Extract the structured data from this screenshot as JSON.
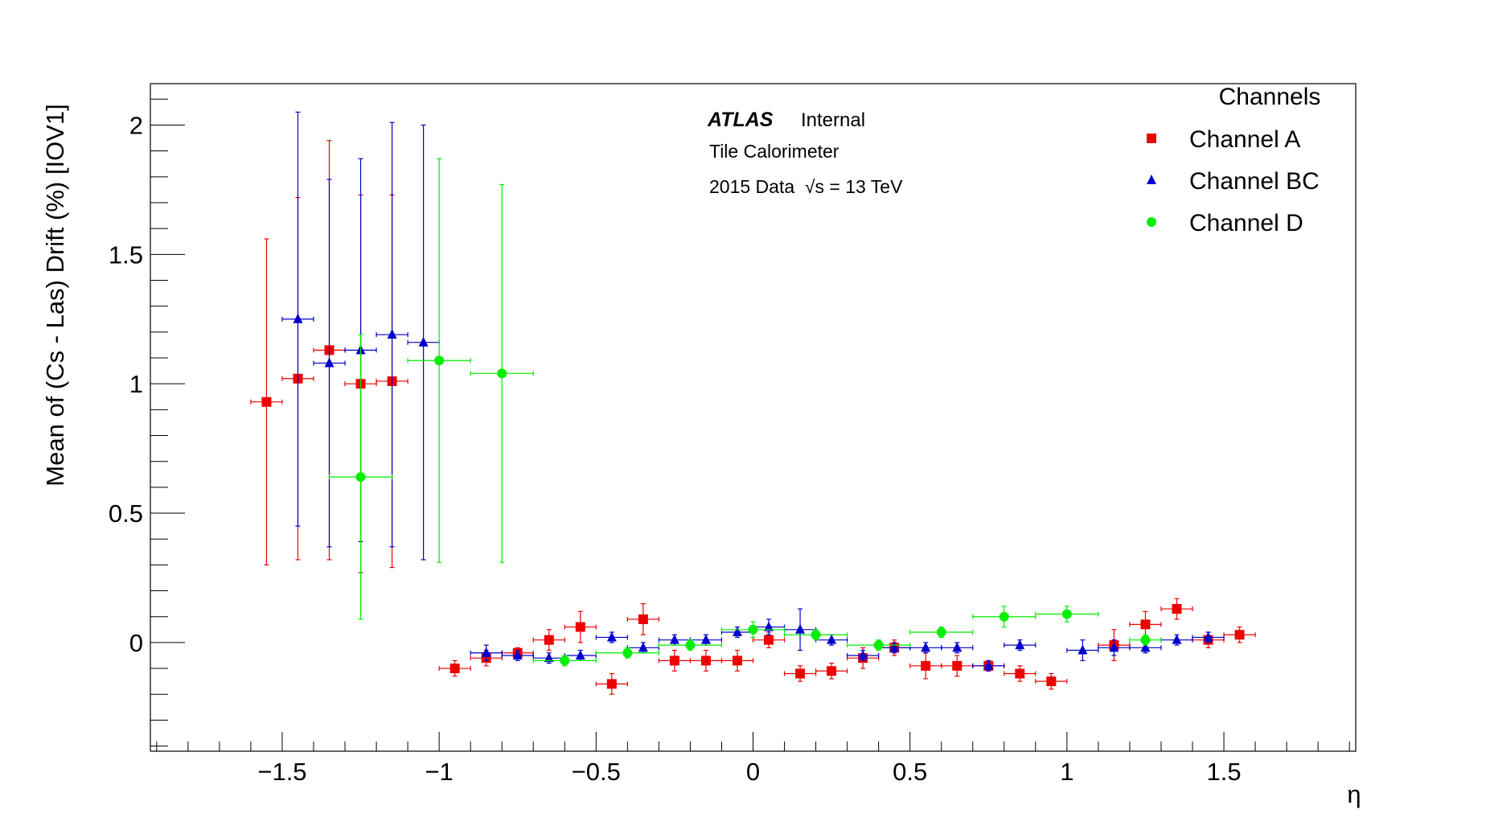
{
  "chart_data": {
    "type": "scatter",
    "title": "",
    "xlabel": "η",
    "ylabel": "Mean of (Cs - Las) Drift (%) [IOV1]",
    "xlim": [
      -1.92,
      1.92
    ],
    "ylim": [
      -0.42,
      2.16
    ],
    "xticks": [
      {
        "value": -1.5,
        "label": "−1.5"
      },
      {
        "value": -1.0,
        "label": "−1"
      },
      {
        "value": -0.5,
        "label": "−0.5"
      },
      {
        "value": 0.0,
        "label": "0"
      },
      {
        "value": 0.5,
        "label": "0.5"
      },
      {
        "value": 1.0,
        "label": "1"
      },
      {
        "value": 1.5,
        "label": "1.5"
      }
    ],
    "yticks": [
      {
        "value": 0.0,
        "label": "0"
      },
      {
        "value": 0.5,
        "label": "0.5"
      },
      {
        "value": 1.0,
        "label": "1"
      },
      {
        "value": 1.5,
        "label": "1.5"
      },
      {
        "value": 2.0,
        "label": "2"
      }
    ],
    "grid": false,
    "legend_position": "top-right",
    "legend_title": "Channels",
    "annotations": {
      "experiment": "ATLAS",
      "status": "Internal",
      "detector": "Tile Calorimeter",
      "dataset": "2015 Data  √s = 13 TeV"
    },
    "series": [
      {
        "name": "Channel A",
        "color": "#ee0000",
        "marker": "square",
        "points": [
          {
            "x": -1.55,
            "y": 0.93,
            "xerr": 0.05,
            "yerr": 0.63
          },
          {
            "x": -1.45,
            "y": 1.02,
            "xerr": 0.05,
            "yerr": 0.7
          },
          {
            "x": -1.35,
            "y": 1.13,
            "xerr": 0.05,
            "yerr": 0.81
          },
          {
            "x": -1.25,
            "y": 1.0,
            "xerr": 0.05,
            "yerr": 0.73
          },
          {
            "x": -1.15,
            "y": 1.01,
            "xerr": 0.05,
            "yerr": 0.72
          },
          {
            "x": -0.95,
            "y": -0.1,
            "xerr": 0.05,
            "yerr": 0.03
          },
          {
            "x": -0.85,
            "y": -0.06,
            "xerr": 0.05,
            "yerr": 0.03
          },
          {
            "x": -0.75,
            "y": -0.04,
            "xerr": 0.05,
            "yerr": 0.02
          },
          {
            "x": -0.65,
            "y": 0.01,
            "xerr": 0.05,
            "yerr": 0.04
          },
          {
            "x": -0.55,
            "y": 0.06,
            "xerr": 0.05,
            "yerr": 0.06
          },
          {
            "x": -0.45,
            "y": -0.16,
            "xerr": 0.05,
            "yerr": 0.04
          },
          {
            "x": -0.35,
            "y": 0.09,
            "xerr": 0.05,
            "yerr": 0.06
          },
          {
            "x": -0.25,
            "y": -0.07,
            "xerr": 0.05,
            "yerr": 0.04
          },
          {
            "x": -0.15,
            "y": -0.07,
            "xerr": 0.05,
            "yerr": 0.04
          },
          {
            "x": -0.05,
            "y": -0.07,
            "xerr": 0.05,
            "yerr": 0.04
          },
          {
            "x": 0.05,
            "y": 0.01,
            "xerr": 0.05,
            "yerr": 0.03
          },
          {
            "x": 0.15,
            "y": -0.12,
            "xerr": 0.05,
            "yerr": 0.03
          },
          {
            "x": 0.25,
            "y": -0.11,
            "xerr": 0.05,
            "yerr": 0.03
          },
          {
            "x": 0.35,
            "y": -0.06,
            "xerr": 0.05,
            "yerr": 0.04
          },
          {
            "x": 0.45,
            "y": -0.02,
            "xerr": 0.05,
            "yerr": 0.03
          },
          {
            "x": 0.55,
            "y": -0.09,
            "xerr": 0.05,
            "yerr": 0.05
          },
          {
            "x": 0.65,
            "y": -0.09,
            "xerr": 0.05,
            "yerr": 0.04
          },
          {
            "x": 0.75,
            "y": -0.09,
            "xerr": 0.05,
            "yerr": 0.02
          },
          {
            "x": 0.85,
            "y": -0.12,
            "xerr": 0.05,
            "yerr": 0.03
          },
          {
            "x": 0.95,
            "y": -0.15,
            "xerr": 0.05,
            "yerr": 0.03
          },
          {
            "x": 1.15,
            "y": -0.01,
            "xerr": 0.05,
            "yerr": 0.06
          },
          {
            "x": 1.25,
            "y": 0.07,
            "xerr": 0.05,
            "yerr": 0.05
          },
          {
            "x": 1.35,
            "y": 0.13,
            "xerr": 0.05,
            "yerr": 0.04
          },
          {
            "x": 1.45,
            "y": 0.01,
            "xerr": 0.05,
            "yerr": 0.03
          },
          {
            "x": 1.55,
            "y": 0.03,
            "xerr": 0.05,
            "yerr": 0.03
          }
        ]
      },
      {
        "name": "Channel BC",
        "color": "#0000cc",
        "marker": "triangle",
        "points": [
          {
            "x": -1.45,
            "y": 1.25,
            "xerr": 0.05,
            "yerr": 0.8
          },
          {
            "x": -1.35,
            "y": 1.08,
            "xerr": 0.05,
            "yerr": 0.71
          },
          {
            "x": -1.25,
            "y": 1.13,
            "xerr": 0.05,
            "yerr": 0.74
          },
          {
            "x": -1.15,
            "y": 1.19,
            "xerr": 0.05,
            "yerr": 0.82
          },
          {
            "x": -1.05,
            "y": 1.16,
            "xerr": 0.05,
            "yerr": 0.84
          },
          {
            "x": -0.85,
            "y": -0.04,
            "xerr": 0.05,
            "yerr": 0.03
          },
          {
            "x": -0.75,
            "y": -0.05,
            "xerr": 0.05,
            "yerr": 0.02
          },
          {
            "x": -0.65,
            "y": -0.06,
            "xerr": 0.05,
            "yerr": 0.02
          },
          {
            "x": -0.55,
            "y": -0.05,
            "xerr": 0.05,
            "yerr": 0.02
          },
          {
            "x": -0.45,
            "y": 0.02,
            "xerr": 0.05,
            "yerr": 0.02
          },
          {
            "x": -0.35,
            "y": -0.02,
            "xerr": 0.05,
            "yerr": 0.02
          },
          {
            "x": -0.25,
            "y": 0.01,
            "xerr": 0.05,
            "yerr": 0.02
          },
          {
            "x": -0.15,
            "y": 0.01,
            "xerr": 0.05,
            "yerr": 0.02
          },
          {
            "x": -0.05,
            "y": 0.04,
            "xerr": 0.05,
            "yerr": 0.02
          },
          {
            "x": 0.05,
            "y": 0.06,
            "xerr": 0.05,
            "yerr": 0.03
          },
          {
            "x": 0.15,
            "y": 0.05,
            "xerr": 0.05,
            "yerr": 0.08
          },
          {
            "x": 0.25,
            "y": 0.01,
            "xerr": 0.05,
            "yerr": 0.02
          },
          {
            "x": 0.35,
            "y": -0.05,
            "xerr": 0.05,
            "yerr": 0.02
          },
          {
            "x": 0.45,
            "y": -0.02,
            "xerr": 0.05,
            "yerr": 0.02
          },
          {
            "x": 0.55,
            "y": -0.02,
            "xerr": 0.05,
            "yerr": 0.02
          },
          {
            "x": 0.65,
            "y": -0.02,
            "xerr": 0.05,
            "yerr": 0.02
          },
          {
            "x": 0.75,
            "y": -0.09,
            "xerr": 0.05,
            "yerr": 0.02
          },
          {
            "x": 0.85,
            "y": -0.01,
            "xerr": 0.05,
            "yerr": 0.02
          },
          {
            "x": 1.05,
            "y": -0.03,
            "xerr": 0.05,
            "yerr": 0.04
          },
          {
            "x": 1.15,
            "y": -0.02,
            "xerr": 0.05,
            "yerr": 0.03
          },
          {
            "x": 1.25,
            "y": -0.02,
            "xerr": 0.05,
            "yerr": 0.02
          },
          {
            "x": 1.35,
            "y": 0.01,
            "xerr": 0.05,
            "yerr": 0.02
          },
          {
            "x": 1.45,
            "y": 0.02,
            "xerr": 0.05,
            "yerr": 0.02
          }
        ]
      },
      {
        "name": "Channel D",
        "color": "#00ee00",
        "marker": "circle",
        "points": [
          {
            "x": -1.25,
            "y": 0.64,
            "xerr": 0.1,
            "yerr": 0.55
          },
          {
            "x": -1.0,
            "y": 1.09,
            "xerr": 0.1,
            "yerr": 0.78
          },
          {
            "x": -0.8,
            "y": 1.04,
            "xerr": 0.1,
            "yerr": 0.73
          },
          {
            "x": -0.6,
            "y": -0.07,
            "xerr": 0.1,
            "yerr": 0.02
          },
          {
            "x": -0.4,
            "y": -0.04,
            "xerr": 0.1,
            "yerr": 0.02
          },
          {
            "x": -0.2,
            "y": -0.01,
            "xerr": 0.1,
            "yerr": 0.02
          },
          {
            "x": 0.0,
            "y": 0.05,
            "xerr": 0.1,
            "yerr": 0.03
          },
          {
            "x": 0.2,
            "y": 0.03,
            "xerr": 0.1,
            "yerr": 0.02
          },
          {
            "x": 0.4,
            "y": -0.01,
            "xerr": 0.1,
            "yerr": 0.02
          },
          {
            "x": 0.6,
            "y": 0.04,
            "xerr": 0.1,
            "yerr": 0.02
          },
          {
            "x": 0.8,
            "y": 0.1,
            "xerr": 0.1,
            "yerr": 0.04
          },
          {
            "x": 1.0,
            "y": 0.11,
            "xerr": 0.1,
            "yerr": 0.03
          },
          {
            "x": 1.25,
            "y": 0.01,
            "xerr": 0.05,
            "yerr": 0.02
          }
        ]
      }
    ]
  }
}
